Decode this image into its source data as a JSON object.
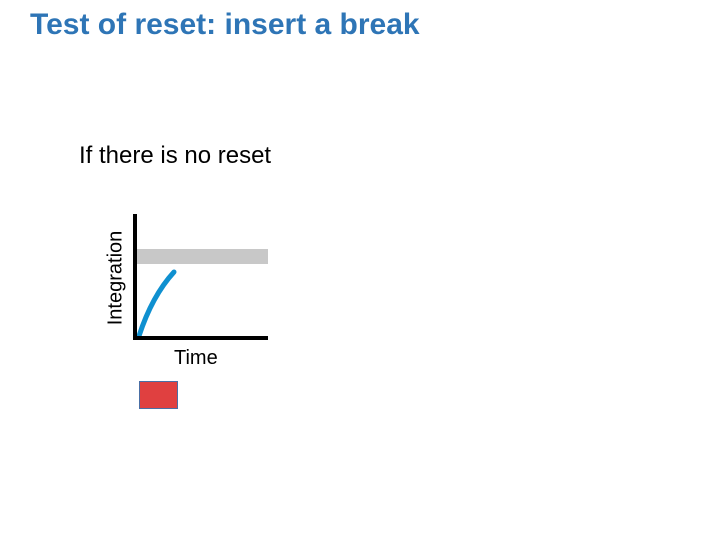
{
  "title": "Test of reset: insert a break",
  "subtitle": "If there is no reset",
  "diagram": {
    "y_axis_label": "Integration",
    "x_axis_label": "Time",
    "colors": {
      "axis": "#000000",
      "threshold_band": "#c8c8c8",
      "curve": "#0f90d0",
      "marker_fill": "#e04040",
      "marker_border": "#4a6fa5"
    }
  }
}
